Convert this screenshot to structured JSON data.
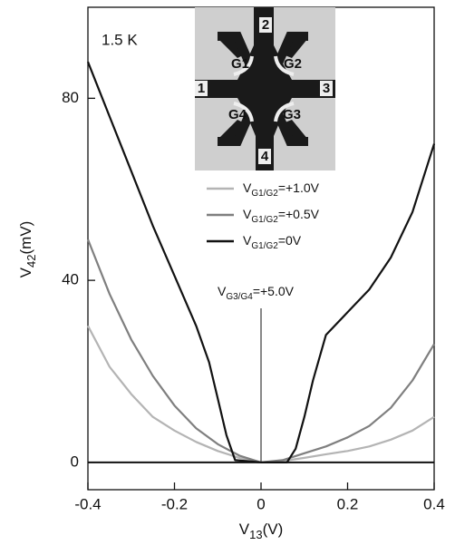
{
  "chart_data": {
    "type": "line",
    "annotation_temp": "1.5 K",
    "annotation_gate": [
      "V",
      "G3/G4",
      "=+5.0V"
    ],
    "xlabel": [
      "V",
      "13",
      "(V)"
    ],
    "ylabel": [
      "V",
      "42",
      "(mV)"
    ],
    "inset_labels": [
      "2",
      "G1",
      "G2",
      "1",
      "3",
      "G4",
      "G3",
      "4"
    ],
    "xlim": [
      -0.4,
      0.4
    ],
    "xticks": [
      -0.4,
      -0.2,
      0,
      0.2,
      0.4
    ],
    "ylim": [
      -6,
      100
    ],
    "yticks": [
      0,
      40,
      80
    ],
    "series": [
      {
        "name": [
          "V",
          "G1/G2",
          "=+1.0V"
        ],
        "color": "#b4b4b4",
        "x": [
          -0.4,
          -0.35,
          -0.3,
          -0.25,
          -0.2,
          -0.15,
          -0.1,
          -0.05,
          0,
          0.05,
          0.1,
          0.15,
          0.2,
          0.25,
          0.3,
          0.35,
          0.4
        ],
        "values": [
          30,
          21,
          15,
          10,
          7,
          4.5,
          2.5,
          1,
          0,
          0.3,
          1,
          1.8,
          2.5,
          3.5,
          5,
          7,
          10
        ]
      },
      {
        "name": [
          "V",
          "G1/G2",
          "=+0.5V"
        ],
        "color": "#7f7f7f",
        "x": [
          -0.4,
          -0.35,
          -0.3,
          -0.25,
          -0.2,
          -0.15,
          -0.1,
          -0.05,
          0,
          0.05,
          0.1,
          0.15,
          0.2,
          0.25,
          0.3,
          0.35,
          0.4
        ],
        "values": [
          49,
          37,
          27,
          19,
          12.5,
          7.5,
          4,
          1.5,
          0,
          0.5,
          2,
          3.5,
          5.5,
          8,
          12,
          18,
          26
        ]
      },
      {
        "name": [
          "V",
          "G1/G2",
          "=0V"
        ],
        "color": "#111111",
        "x": [
          -0.4,
          -0.35,
          -0.3,
          -0.25,
          -0.2,
          -0.15,
          -0.12,
          -0.1,
          -0.08,
          -0.06,
          0,
          0.06,
          0.08,
          0.1,
          0.12,
          0.15,
          0.2,
          0.25,
          0.3,
          0.35,
          0.4
        ],
        "values": [
          88,
          76,
          64,
          52,
          41,
          30,
          22,
          14,
          6,
          0.5,
          0,
          0,
          3,
          10,
          18,
          28,
          33,
          38,
          45,
          55,
          70
        ]
      }
    ]
  }
}
